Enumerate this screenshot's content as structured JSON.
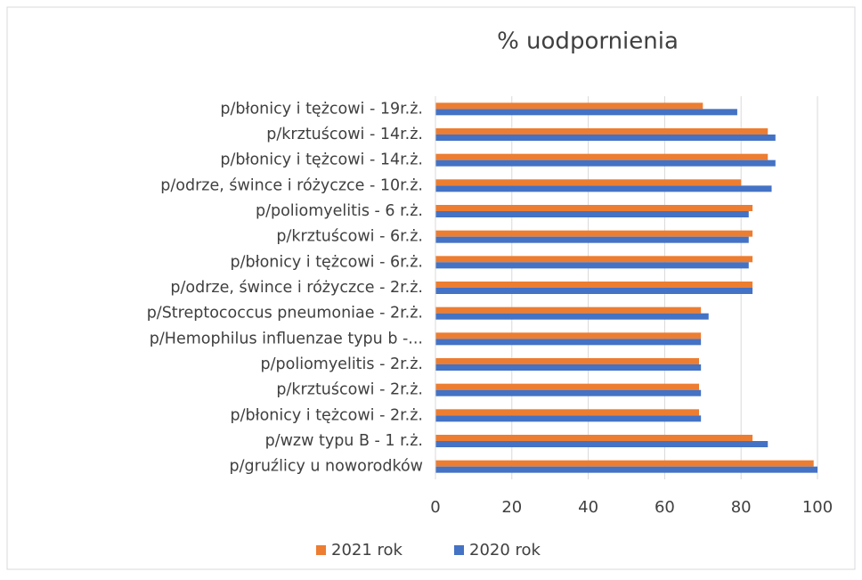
{
  "chart_data": {
    "type": "hbar",
    "title": "% uodpornienia",
    "categories": [
      "p/błonicy i tężcowi - 19r.ż.",
      "p/krztuścowi - 14r.ż.",
      "p/błonicy i tężcowi - 14r.ż.",
      "p/odrze, śwince i różyczce - 10r.ż.",
      "p/poliomyelitis - 6 r.ż.",
      "p/krztuścowi - 6r.ż.",
      "p/błonicy i tężcowi - 6r.ż.",
      "p/odrze, śwince i różyczce - 2r.ż.",
      "p/Streptococcus pneumoniae - 2r.ż.",
      "p/Hemophilus influenzae typu b -...",
      "p/poliomyelitis - 2r.ż.",
      "p/krztuścowi - 2r.ż.",
      "p/błonicy i tężcowi - 2r.ż.",
      "p/wzw typu B - 1 r.ż.",
      "p/gruźlicy u noworodków"
    ],
    "series": [
      {
        "name": "2021 rok",
        "color": "#ed7d31",
        "values": [
          70,
          87,
          87,
          80,
          83,
          83,
          83,
          83,
          69.5,
          69.5,
          69,
          69,
          69,
          83,
          99
        ]
      },
      {
        "name": "2020 rok",
        "color": "#4472c4",
        "values": [
          79,
          89,
          89,
          88,
          82,
          82,
          82,
          83,
          71.5,
          69.5,
          69.5,
          69.5,
          69.5,
          87,
          100
        ]
      }
    ],
    "xlim": [
      0,
      100
    ],
    "xticks": [
      0,
      20,
      40,
      60,
      80,
      100
    ],
    "grid": true,
    "legend": "bottom"
  }
}
